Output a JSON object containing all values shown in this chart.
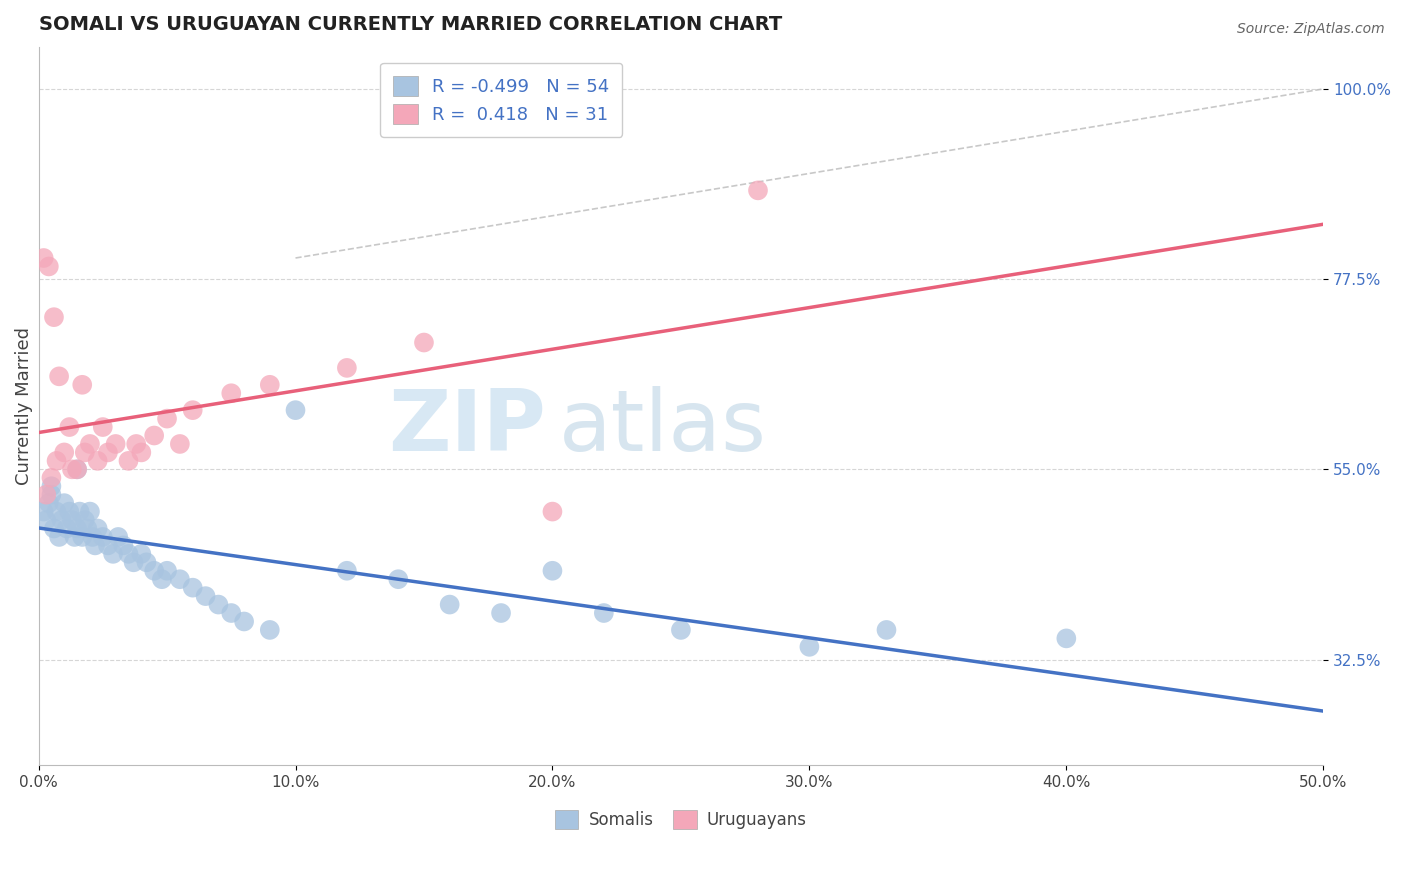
{
  "title": "SOMALI VS URUGUAYAN CURRENTLY MARRIED CORRELATION CHART",
  "source_text": "Source: ZipAtlas.com",
  "ylabel": "Currently Married",
  "xlim": [
    0.0,
    50.0
  ],
  "ylim": [
    20.0,
    105.0
  ],
  "yticks": [
    32.5,
    55.0,
    77.5,
    100.0
  ],
  "xticks": [
    0.0,
    10.0,
    20.0,
    30.0,
    40.0,
    50.0
  ],
  "xtick_labels": [
    "0.0%",
    "10.0%",
    "20.0%",
    "30.0%",
    "40.0%",
    "50.0%"
  ],
  "ytick_labels": [
    "32.5%",
    "55.0%",
    "77.5%",
    "100.0%"
  ],
  "somali_color": "#a8c4e0",
  "uruguayan_color": "#f4a7b9",
  "somali_line_color": "#4472c4",
  "uruguayan_line_color": "#e8607a",
  "R_somali": -0.499,
  "N_somali": 54,
  "R_uruguayan": 0.418,
  "N_uruguayan": 31,
  "watermark_zip": "ZIP",
  "watermark_atlas": "atlas",
  "background_color": "#ffffff",
  "grid_color": "#cccccc",
  "somali_x": [
    0.2,
    0.3,
    0.4,
    0.5,
    0.6,
    0.7,
    0.8,
    0.9,
    1.0,
    1.1,
    1.2,
    1.3,
    1.4,
    1.5,
    1.6,
    1.7,
    1.8,
    1.9,
    2.0,
    2.1,
    2.2,
    2.3,
    2.5,
    2.7,
    2.9,
    3.1,
    3.3,
    3.5,
    3.7,
    4.0,
    4.2,
    4.5,
    4.8,
    5.0,
    5.5,
    6.0,
    6.5,
    7.0,
    7.5,
    8.0,
    9.0,
    10.0,
    12.0,
    14.0,
    16.0,
    18.0,
    20.0,
    22.0,
    25.0,
    30.0,
    33.0,
    40.0,
    0.5,
    1.5
  ],
  "somali_y": [
    50.0,
    49.0,
    51.0,
    52.0,
    48.0,
    50.0,
    47.0,
    49.0,
    51.0,
    48.0,
    50.0,
    49.0,
    47.0,
    48.0,
    50.0,
    47.0,
    49.0,
    48.0,
    50.0,
    47.0,
    46.0,
    48.0,
    47.0,
    46.0,
    45.0,
    47.0,
    46.0,
    45.0,
    44.0,
    45.0,
    44.0,
    43.0,
    42.0,
    43.0,
    42.0,
    41.0,
    40.0,
    39.0,
    38.0,
    37.0,
    36.0,
    62.0,
    43.0,
    42.0,
    39.0,
    38.0,
    43.0,
    38.0,
    36.0,
    34.0,
    36.0,
    35.0,
    53.0,
    55.0
  ],
  "uruguayan_x": [
    0.3,
    0.5,
    0.7,
    1.0,
    1.3,
    1.5,
    1.8,
    2.0,
    2.3,
    2.7,
    3.0,
    3.5,
    4.0,
    4.5,
    5.0,
    6.0,
    7.5,
    9.0,
    12.0,
    15.0,
    20.0,
    28.0,
    0.4,
    0.8,
    1.2,
    1.7,
    2.5,
    3.8,
    5.5,
    0.2,
    0.6
  ],
  "uruguayan_y": [
    52.0,
    54.0,
    56.0,
    57.0,
    55.0,
    55.0,
    57.0,
    58.0,
    56.0,
    57.0,
    58.0,
    56.0,
    57.0,
    59.0,
    61.0,
    62.0,
    64.0,
    65.0,
    67.0,
    70.0,
    50.0,
    88.0,
    79.0,
    66.0,
    60.0,
    65.0,
    60.0,
    58.0,
    58.0,
    80.0,
    73.0
  ]
}
